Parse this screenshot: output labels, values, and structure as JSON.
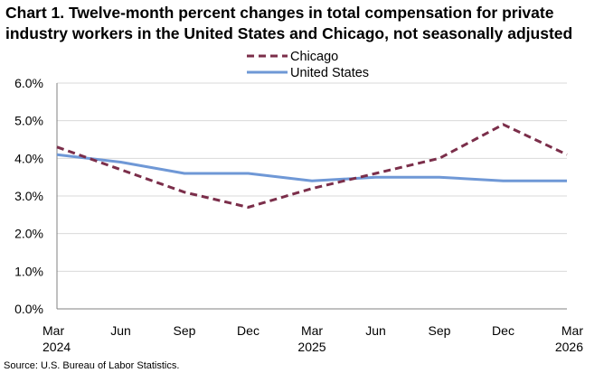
{
  "title_line1": "Chart 1. Twelve-month percent changes in total compensation for private",
  "title_line2": "industry workers in the United States and Chicago, not seasonally adjusted",
  "source": "Source: U.S. Bureau of Labor Statistics.",
  "chart_data": {
    "type": "line",
    "categories": [
      "Mar 2024",
      "Jun",
      "Sep",
      "Dec",
      "Mar 2025",
      "Jun",
      "Sep",
      "Dec",
      "Mar 2026"
    ],
    "x_tick_lines": [
      [
        "Mar",
        "2024"
      ],
      [
        "Jun",
        ""
      ],
      [
        "Sep",
        ""
      ],
      [
        "Dec",
        ""
      ],
      [
        "Mar",
        "2025"
      ],
      [
        "Jun",
        ""
      ],
      [
        "Sep",
        ""
      ],
      [
        "Dec",
        ""
      ],
      [
        "Mar",
        "2026"
      ]
    ],
    "y_ticks": [
      "0.0%",
      "1.0%",
      "2.0%",
      "3.0%",
      "4.0%",
      "5.0%",
      "6.0%"
    ],
    "ylim": [
      0,
      6
    ],
    "legend_position": "top-center",
    "grid": true,
    "series": [
      {
        "name": "Chicago",
        "values": [
          4.3,
          3.7,
          3.1,
          2.7,
          3.2,
          3.6,
          4.0,
          4.9,
          4.1
        ],
        "color": "#7b2e4a",
        "style": "dashed"
      },
      {
        "name": "United States",
        "values": [
          4.1,
          3.9,
          3.6,
          3.6,
          3.4,
          3.5,
          3.5,
          3.4,
          3.4
        ],
        "color": "#6f98d6",
        "style": "solid"
      }
    ]
  }
}
